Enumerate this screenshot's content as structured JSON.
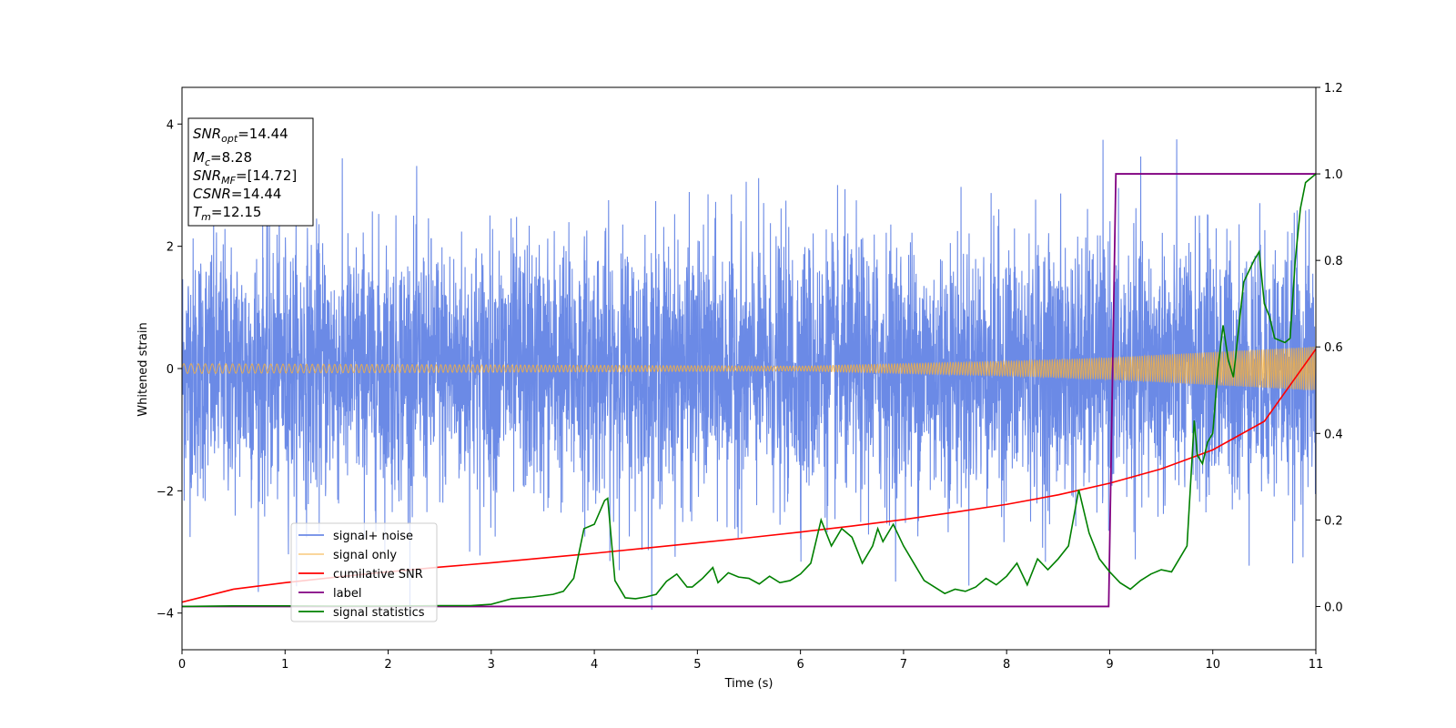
{
  "chart_data": {
    "type": "line",
    "xlabel": "Time (s)",
    "ylabel_left": "Whitened strain",
    "ylabel_right": "",
    "xlim": [
      0,
      11
    ],
    "ylim_left": [
      -4.6,
      4.6
    ],
    "ylim_right": [
      -0.1,
      1.2
    ],
    "x_ticks": [
      0,
      1,
      2,
      3,
      4,
      5,
      6,
      7,
      8,
      9,
      10,
      11
    ],
    "y_ticks_left": [
      -4,
      -2,
      0,
      2,
      4
    ],
    "y_ticks_right": [
      0.0,
      0.2,
      0.4,
      0.6,
      0.8,
      1.0,
      1.2
    ],
    "grid": false,
    "legend_position": "lower-left",
    "colors": {
      "signal_noise": "#6b8ae6",
      "signal_only": "#f5b041",
      "cumulative_snr": "#ff0000",
      "label": "#800080",
      "signal_statistics": "#008000"
    },
    "info_box": {
      "line1_main": "SNR",
      "line1_sub": "opt",
      "line1_value": "=14.44",
      "line2_main": "M",
      "line2_sub": "c",
      "line2_value": "=8.28",
      "line3_main": "SNR",
      "line3_sub": "MF",
      "line3_value": "=[14.72]",
      "line4_main": "CSNR",
      "line4_value": "=14.44",
      "line5_main": "T",
      "line5_sub": "m",
      "line5_value": "=12.15"
    },
    "series": [
      {
        "name": "signal+ noise",
        "axis": "left",
        "description_range": [
          -4.1,
          3.75
        ]
      },
      {
        "name": "signal only",
        "axis": "left",
        "envelope": [
          [
            0,
            0.08
          ],
          [
            6,
            0.04
          ],
          [
            8,
            0.12
          ],
          [
            9,
            0.18
          ],
          [
            10,
            0.27
          ],
          [
            11,
            0.36
          ]
        ]
      },
      {
        "name": "cumilative SNR",
        "axis": "right",
        "x": [
          0,
          0.5,
          1,
          1.5,
          2,
          2.5,
          3,
          3.5,
          4,
          4.5,
          5,
          5.5,
          6,
          6.5,
          7,
          7.5,
          8,
          8.5,
          9,
          9.5,
          10,
          10.5,
          11
        ],
        "y": [
          0.01,
          0.04,
          0.055,
          0.068,
          0.08,
          0.091,
          0.101,
          0.112,
          0.123,
          0.135,
          0.147,
          0.159,
          0.172,
          0.186,
          0.201,
          0.218,
          0.236,
          0.258,
          0.285,
          0.318,
          0.362,
          0.428,
          0.595
        ]
      },
      {
        "name": "label",
        "axis": "right",
        "x": [
          0,
          8.99,
          9.06,
          11
        ],
        "y": [
          0,
          0,
          1,
          1
        ]
      },
      {
        "name": "signal statistics",
        "axis": "right",
        "x": [
          0,
          0.5,
          1,
          1.5,
          2,
          2.5,
          2.8,
          3,
          3.2,
          3.4,
          3.6,
          3.7,
          3.8,
          3.9,
          4,
          4.1,
          4.13,
          4.2,
          4.3,
          4.4,
          4.5,
          4.6,
          4.7,
          4.8,
          4.9,
          4.95,
          5.05,
          5.15,
          5.2,
          5.3,
          5.4,
          5.5,
          5.6,
          5.7,
          5.8,
          5.9,
          6,
          6.1,
          6.2,
          6.3,
          6.4,
          6.5,
          6.6,
          6.7,
          6.75,
          6.8,
          6.9,
          7,
          7.1,
          7.2,
          7.3,
          7.4,
          7.5,
          7.6,
          7.7,
          7.8,
          7.9,
          8,
          8.1,
          8.2,
          8.3,
          8.4,
          8.5,
          8.6,
          8.7,
          8.8,
          8.9,
          9.0,
          9.1,
          9.2,
          9.3,
          9.4,
          9.5,
          9.6,
          9.7,
          9.75,
          9.82,
          9.85,
          9.9,
          9.95,
          10.0,
          10.05,
          10.1,
          10.15,
          10.2,
          10.3,
          10.4,
          10.45,
          10.5,
          10.55,
          10.6,
          10.7,
          10.75,
          10.8,
          10.85,
          10.9,
          11.0
        ],
        "y": [
          0.0,
          0.0015,
          0.0015,
          0.001,
          0.001,
          0.002,
          0.002,
          0.005,
          0.018,
          0.022,
          0.028,
          0.035,
          0.065,
          0.18,
          0.19,
          0.245,
          0.25,
          0.06,
          0.02,
          0.018,
          0.022,
          0.028,
          0.058,
          0.075,
          0.045,
          0.045,
          0.065,
          0.09,
          0.055,
          0.078,
          0.068,
          0.065,
          0.052,
          0.07,
          0.055,
          0.06,
          0.075,
          0.1,
          0.2,
          0.14,
          0.18,
          0.16,
          0.1,
          0.14,
          0.18,
          0.15,
          0.19,
          0.14,
          0.1,
          0.06,
          0.045,
          0.03,
          0.04,
          0.035,
          0.045,
          0.065,
          0.05,
          0.07,
          0.1,
          0.05,
          0.11,
          0.085,
          0.11,
          0.14,
          0.27,
          0.17,
          0.11,
          0.08,
          0.055,
          0.04,
          0.06,
          0.075,
          0.085,
          0.08,
          0.12,
          0.14,
          0.43,
          0.35,
          0.33,
          0.38,
          0.4,
          0.55,
          0.65,
          0.57,
          0.53,
          0.75,
          0.8,
          0.82,
          0.7,
          0.67,
          0.62,
          0.61,
          0.62,
          0.8,
          0.92,
          0.98,
          1.0
        ]
      }
    ]
  }
}
